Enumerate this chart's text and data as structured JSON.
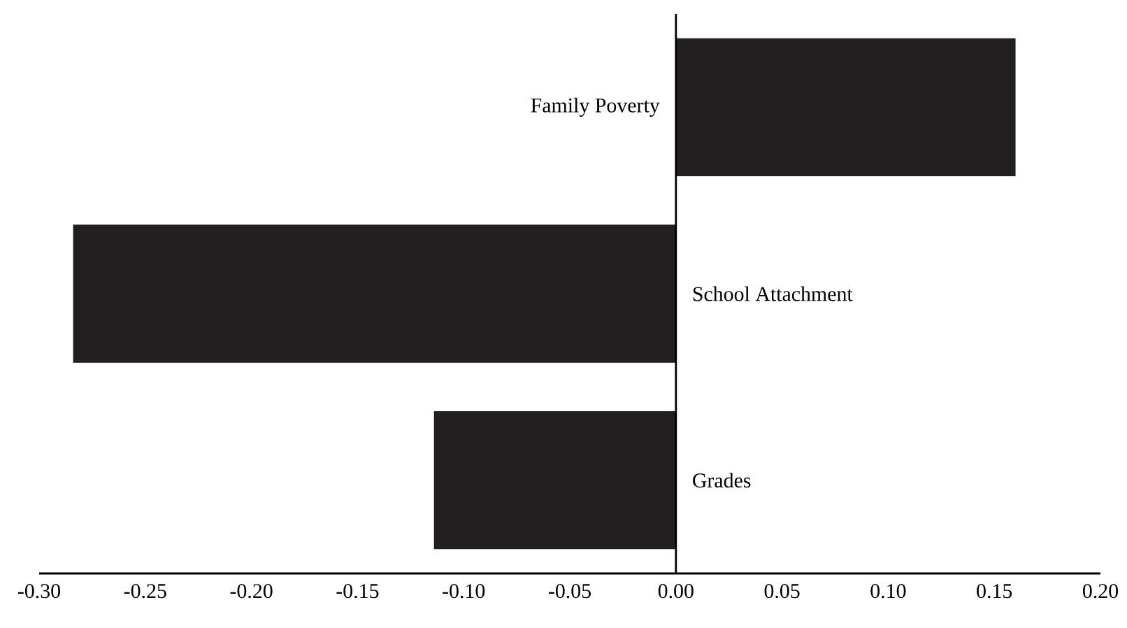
{
  "chart_data": {
    "type": "bar",
    "orientation": "horizontal",
    "categories": [
      "Family Poverty",
      "School Attachment",
      "Grades"
    ],
    "values": [
      0.16,
      -0.284,
      -0.114
    ],
    "color": "#231f20",
    "xlim": [
      -0.3,
      0.2
    ],
    "xticks": [
      {
        "value": -0.3,
        "label": "-0.30"
      },
      {
        "value": -0.25,
        "label": "-0.25"
      },
      {
        "value": -0.2,
        "label": "-0.20"
      },
      {
        "value": -0.15,
        "label": "-0.15"
      },
      {
        "value": -0.1,
        "label": "-0.10"
      },
      {
        "value": -0.05,
        "label": "-0.05"
      },
      {
        "value": 0,
        "label": "0.00"
      },
      {
        "value": 0.05,
        "label": "0.05"
      },
      {
        "value": 0.1,
        "label": "0.10"
      },
      {
        "value": 0.15,
        "label": "0.15"
      },
      {
        "value": 0.2,
        "label": "0.20"
      }
    ]
  }
}
